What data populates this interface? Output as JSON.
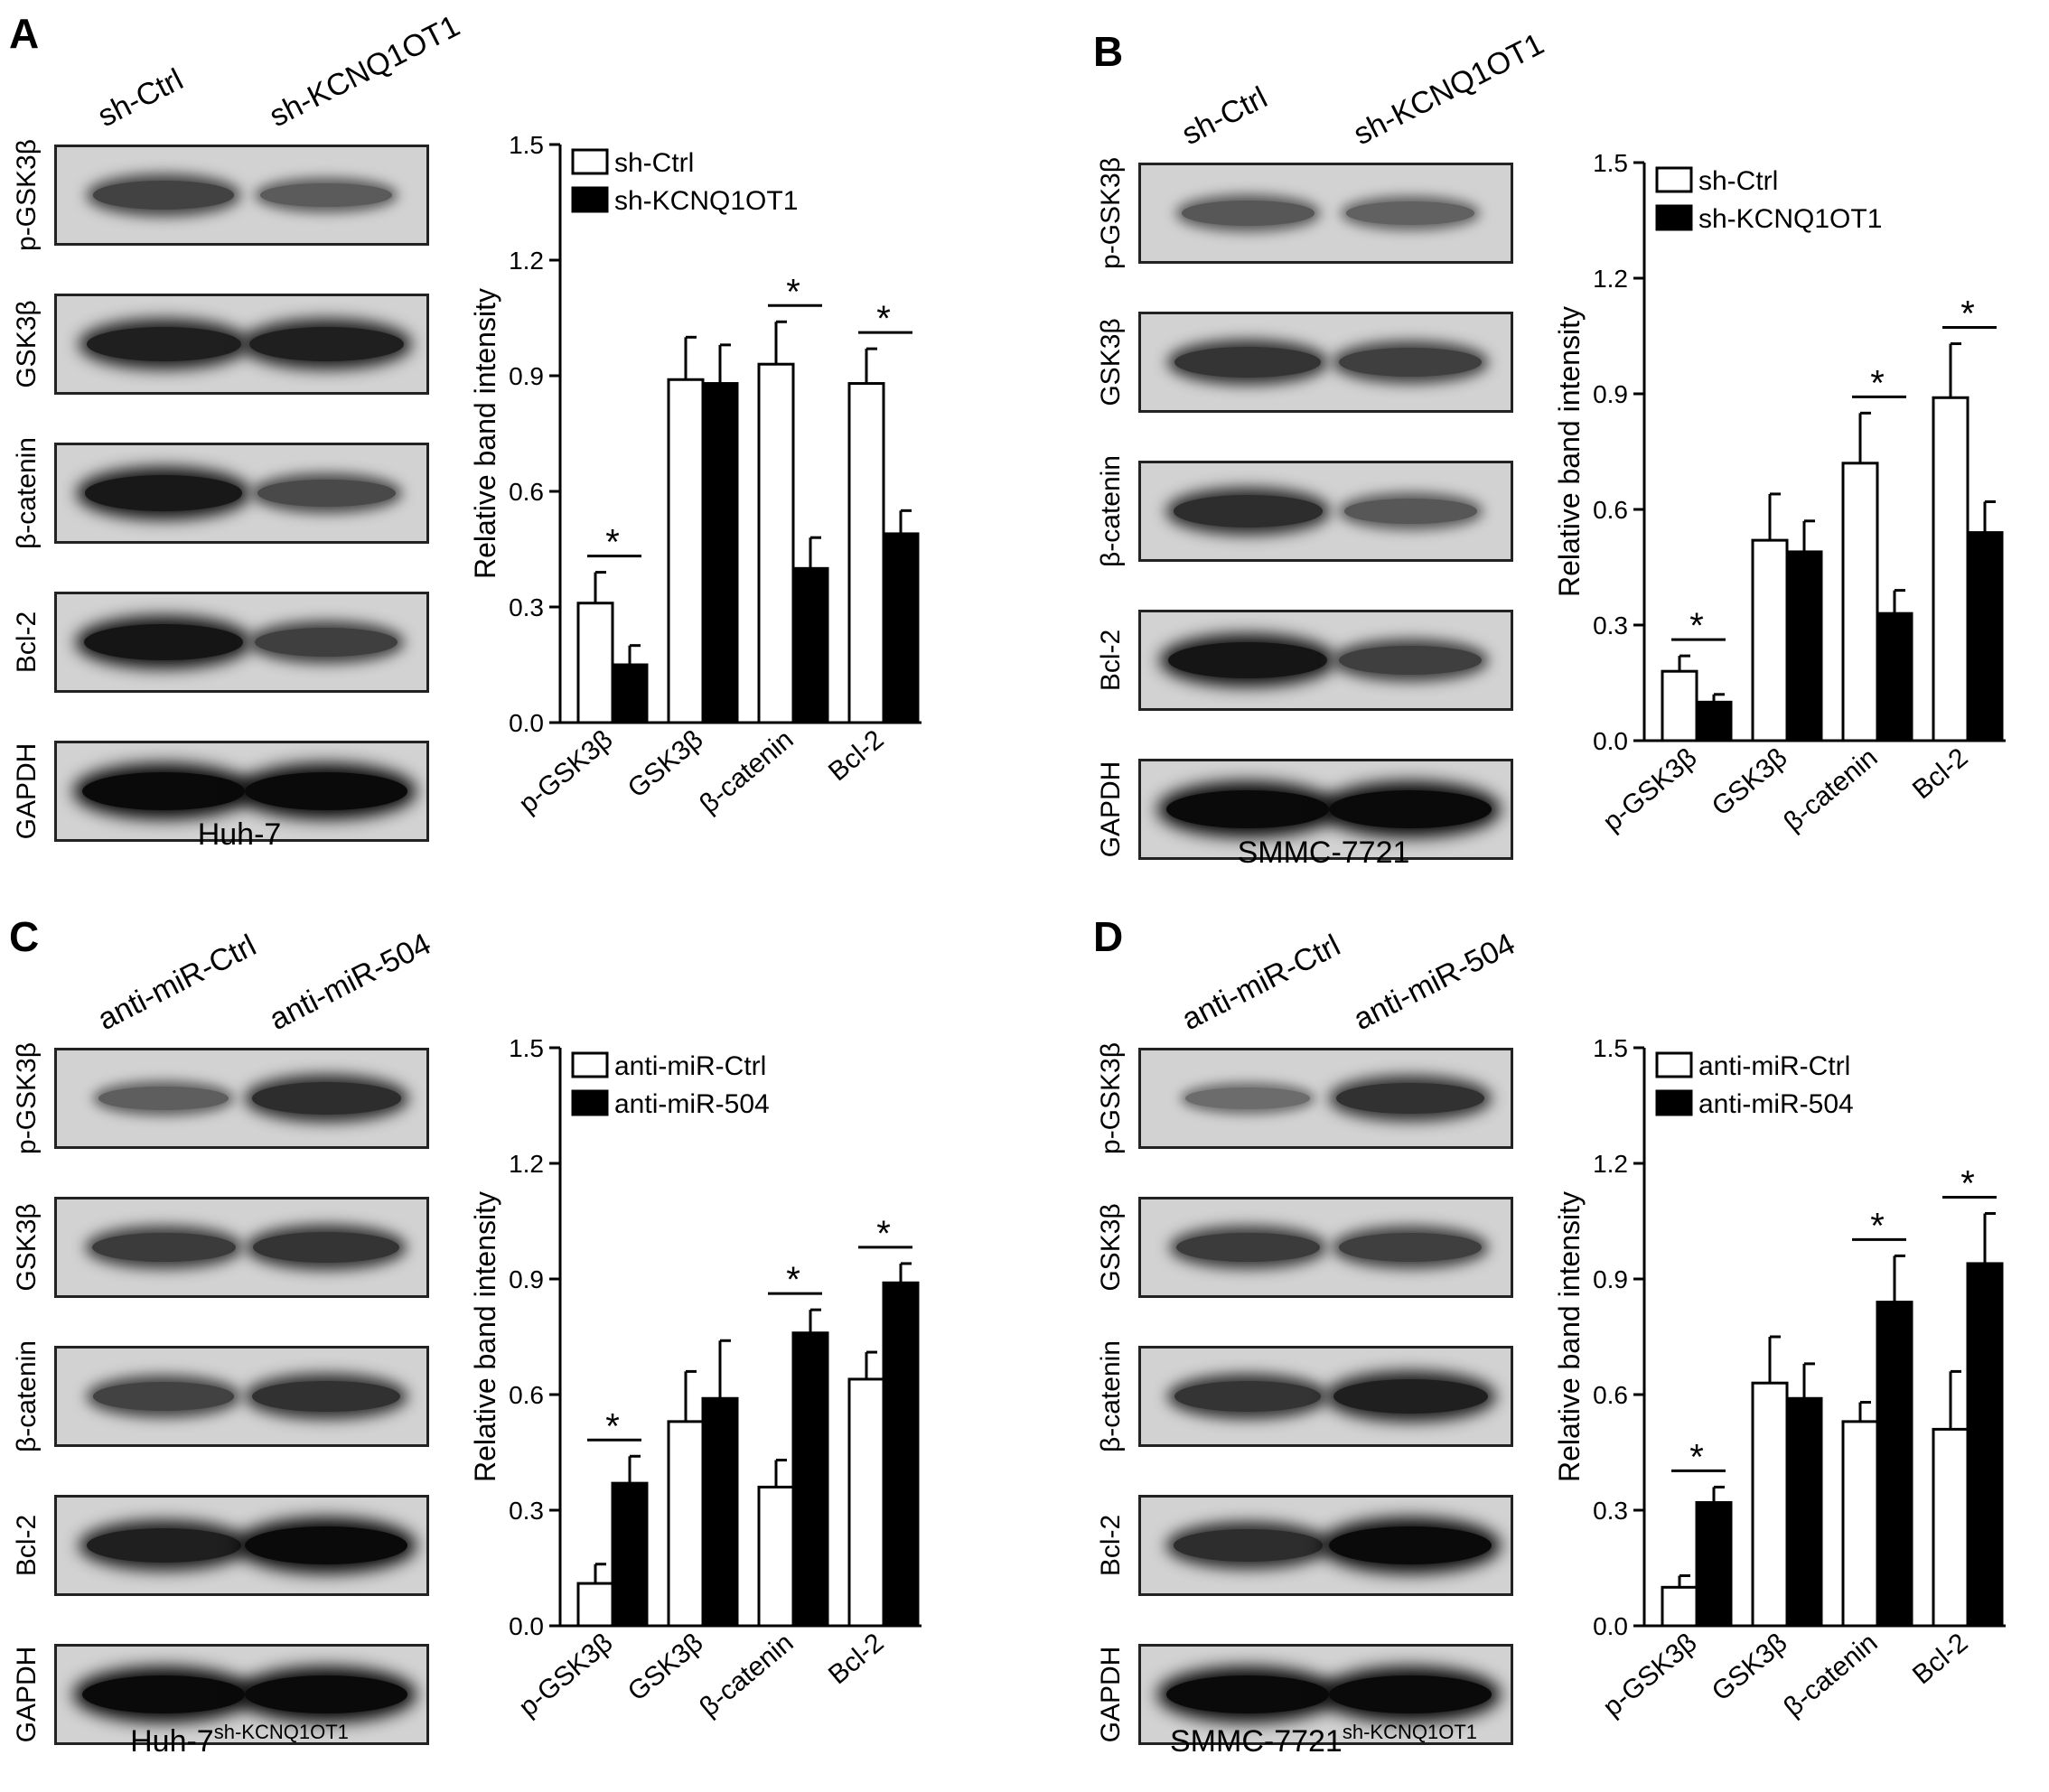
{
  "panels": [
    {
      "letter": "A",
      "lanes": [
        "sh-Ctrl",
        "sh-KCNQ1OT1"
      ],
      "rows": [
        "p-GSK3β",
        "GSK3β",
        "β-catenin",
        "Bcl-2",
        "GAPDH"
      ],
      "cell_line": "Huh-7",
      "cell_sup": "",
      "bands": [
        [
          0.6,
          0.42
        ],
        [
          0.85,
          0.85
        ],
        [
          0.9,
          0.55
        ],
        [
          0.92,
          0.62
        ],
        [
          1.0,
          1.0
        ]
      ]
    },
    {
      "letter": "B",
      "lanes": [
        "sh-Ctrl",
        "sh-KCNQ1OT1"
      ],
      "rows": [
        "p-GSK3β",
        "GSK3β",
        "β-catenin",
        "Bcl-2",
        "GAPDH"
      ],
      "cell_line": "SMMC-7721",
      "cell_sup": "",
      "bands": [
        [
          0.45,
          0.38
        ],
        [
          0.7,
          0.62
        ],
        [
          0.75,
          0.45
        ],
        [
          0.92,
          0.62
        ],
        [
          1.0,
          1.0
        ]
      ]
    },
    {
      "letter": "C",
      "lanes": [
        "anti-miR-Ctrl",
        "anti-miR-504"
      ],
      "rows": [
        "p-GSK3β",
        "GSK3β",
        "β-catenin",
        "Bcl-2",
        "GAPDH"
      ],
      "cell_line": "Huh-7",
      "cell_sup": "sh-KCNQ1OT1",
      "bands": [
        [
          0.4,
          0.75
        ],
        [
          0.65,
          0.7
        ],
        [
          0.6,
          0.72
        ],
        [
          0.85,
          1.0
        ],
        [
          1.0,
          1.0
        ]
      ]
    },
    {
      "letter": "D",
      "lanes": [
        "anti-miR-Ctrl",
        "anti-miR-504"
      ],
      "rows": [
        "p-GSK3β",
        "GSK3β",
        "β-catenin",
        "Bcl-2",
        "GAPDH"
      ],
      "cell_line": "SMMC-7721",
      "cell_sup": "sh-KCNQ1OT1",
      "bands": [
        [
          0.3,
          0.72
        ],
        [
          0.65,
          0.62
        ],
        [
          0.7,
          0.85
        ],
        [
          0.75,
          1.0
        ],
        [
          1.0,
          1.0
        ]
      ]
    }
  ],
  "chart_data": [
    {
      "panel": "A",
      "type": "bar",
      "categories": [
        "p-GSK3β",
        "GSK3β",
        "β-catenin",
        "Bcl-2"
      ],
      "series": [
        {
          "name": "sh-Ctrl",
          "values": [
            0.31,
            0.89,
            0.93,
            0.88
          ],
          "errors": [
            0.08,
            0.11,
            0.11,
            0.09
          ]
        },
        {
          "name": "sh-KCNQ1OT1",
          "values": [
            0.15,
            0.88,
            0.4,
            0.49
          ],
          "errors": [
            0.05,
            0.1,
            0.08,
            0.06
          ]
        }
      ],
      "significant": [
        "*",
        "",
        "*",
        "*"
      ],
      "ylabel": "Relative band intensity",
      "ylim": [
        0,
        1.5
      ],
      "yticks": [
        "0.0",
        "0.3",
        "0.6",
        "0.9",
        "1.2",
        "1.5"
      ],
      "legend": "top-left"
    },
    {
      "panel": "B",
      "type": "bar",
      "categories": [
        "p-GSK3β",
        "GSK3β",
        "β-catenin",
        "Bcl-2"
      ],
      "series": [
        {
          "name": "sh-Ctrl",
          "values": [
            0.18,
            0.52,
            0.72,
            0.89
          ],
          "errors": [
            0.04,
            0.12,
            0.13,
            0.14
          ]
        },
        {
          "name": "sh-KCNQ1OT1",
          "values": [
            0.1,
            0.49,
            0.33,
            0.54
          ],
          "errors": [
            0.02,
            0.08,
            0.06,
            0.08
          ]
        }
      ],
      "significant": [
        "*",
        "",
        "*",
        "*"
      ],
      "ylabel": "Relative band intensity",
      "ylim": [
        0,
        1.5
      ],
      "yticks": [
        "0.0",
        "0.3",
        "0.6",
        "0.9",
        "1.2",
        "1.5"
      ],
      "legend": "top-left"
    },
    {
      "panel": "C",
      "type": "bar",
      "categories": [
        "p-GSK3β",
        "GSK3β",
        "β-catenin",
        "Bcl-2"
      ],
      "series": [
        {
          "name": "anti-miR-Ctrl",
          "values": [
            0.11,
            0.53,
            0.36,
            0.64
          ],
          "errors": [
            0.05,
            0.13,
            0.07,
            0.07
          ]
        },
        {
          "name": "anti-miR-504",
          "values": [
            0.37,
            0.59,
            0.76,
            0.89
          ],
          "errors": [
            0.07,
            0.15,
            0.06,
            0.05
          ]
        }
      ],
      "significant": [
        "*",
        "",
        "*",
        "*"
      ],
      "ylabel": "Relative band intensity",
      "ylim": [
        0,
        1.5
      ],
      "yticks": [
        "0.0",
        "0.3",
        "0.6",
        "0.9",
        "1.2",
        "1.5"
      ],
      "legend": "top-left"
    },
    {
      "panel": "D",
      "type": "bar",
      "categories": [
        "p-GSK3β",
        "GSK3β",
        "β-catenin",
        "Bcl-2"
      ],
      "series": [
        {
          "name": "anti-miR-Ctrl",
          "values": [
            0.1,
            0.63,
            0.53,
            0.51
          ],
          "errors": [
            0.03,
            0.12,
            0.05,
            0.15
          ]
        },
        {
          "name": "anti-miR-504",
          "values": [
            0.32,
            0.59,
            0.84,
            0.94
          ],
          "errors": [
            0.04,
            0.09,
            0.12,
            0.13
          ]
        }
      ],
      "significant": [
        "*",
        "",
        "*",
        "*"
      ],
      "ylabel": "Relative band intensity",
      "ylim": [
        0,
        1.5
      ],
      "yticks": [
        "0.0",
        "0.3",
        "0.6",
        "0.9",
        "1.2",
        "1.5"
      ],
      "legend": "top-left"
    }
  ]
}
